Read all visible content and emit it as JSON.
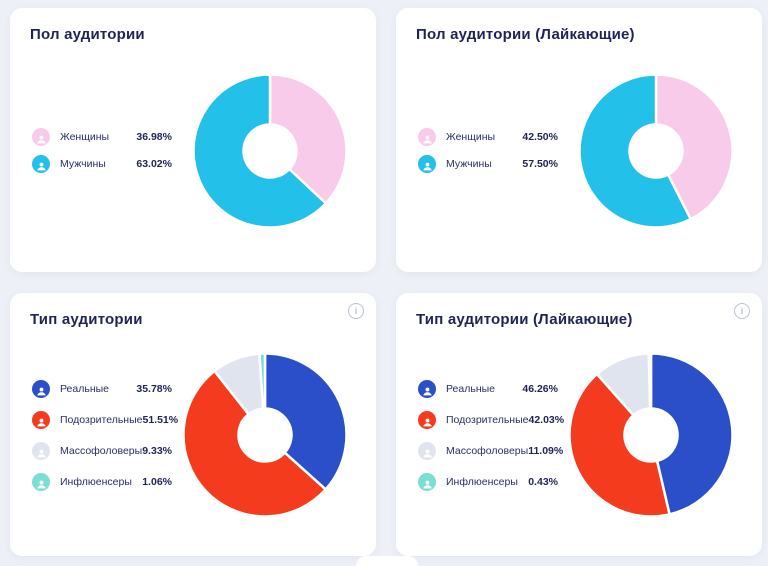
{
  "page": {
    "background_color": "#EDF0F6",
    "card_color": "#FFFFFF",
    "title_color": "#1F2357"
  },
  "icons": {
    "info_glyph": "i"
  },
  "chart_data": [
    {
      "type": "pie",
      "variant": "donut",
      "title": "Пол аудитории",
      "legend_position": "left",
      "size": 156,
      "slices": [
        {
          "label": "Женщины",
          "value": 36.98,
          "display": "36.98%",
          "color": "#F8CBEA"
        },
        {
          "label": "Мужчины",
          "value": 63.02,
          "display": "63.02%",
          "color": "#23C0E9"
        }
      ]
    },
    {
      "type": "pie",
      "variant": "donut",
      "title": "Пол аудитории (Лайкающие)",
      "legend_position": "left",
      "size": 156,
      "slices": [
        {
          "label": "Женщины",
          "value": 42.5,
          "display": "42.50%",
          "color": "#F8CBEA"
        },
        {
          "label": "Мужчины",
          "value": 57.5,
          "display": "57.50%",
          "color": "#23C0E9"
        }
      ]
    },
    {
      "type": "pie",
      "variant": "donut",
      "title": "Тип аудитории",
      "legend_position": "left",
      "size": 166,
      "has_info_icon": true,
      "slices": [
        {
          "label": "Реальные",
          "value": 35.78,
          "display": "35.78%",
          "color": "#2B4FC8"
        },
        {
          "label": "Подозрительные",
          "value": 51.51,
          "display": "51.51%",
          "color": "#F43B1E"
        },
        {
          "label": "Массофоловеры",
          "value": 9.33,
          "display": "9.33%",
          "color": "#E0E4EF"
        },
        {
          "label": "Инфлюенсеры",
          "value": 1.06,
          "display": "1.06%",
          "color": "#7ADED3"
        }
      ]
    },
    {
      "type": "pie",
      "variant": "donut",
      "title": "Тип аудитории (Лайкающие)",
      "legend_position": "left",
      "size": 166,
      "has_info_icon": true,
      "slices": [
        {
          "label": "Реальные",
          "value": 46.26,
          "display": "46.26%",
          "color": "#2B4FC8"
        },
        {
          "label": "Подозрительные",
          "value": 42.03,
          "display": "42.03%",
          "color": "#F43B1E"
        },
        {
          "label": "Массофоловеры",
          "value": 11.09,
          "display": "11.09%",
          "color": "#E0E4EF"
        },
        {
          "label": "Инфлюенсеры",
          "value": 0.43,
          "display": "0.43%",
          "color": "#7ADED3"
        }
      ]
    }
  ]
}
